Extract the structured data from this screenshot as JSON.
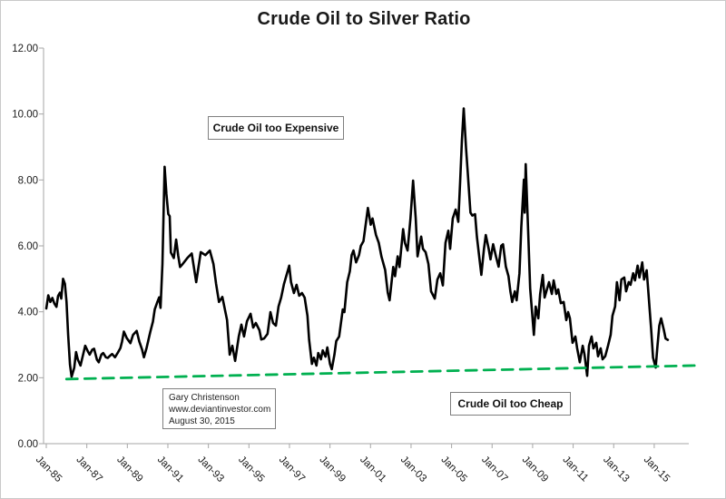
{
  "chart": {
    "title": "Crude Oil to Silver Ratio"
  },
  "annotations": {
    "expensive": "Crude Oil too Expensive",
    "cheap": "Crude Oil too Cheap",
    "credit_line1": "Gary Christenson",
    "credit_line2": "www.deviantinvestor.com",
    "credit_line3": "August 30, 2015"
  },
  "colors": {
    "series": "#000000",
    "trendline": "#00B050",
    "axis": "#a6a6a6",
    "tick_text": "#1a1a1a",
    "box_border": "#7f7f7f"
  },
  "chart_data": {
    "type": "line",
    "title": "Crude Oil to Silver Ratio",
    "xlabel": "",
    "ylabel": "",
    "grid": false,
    "legend": null,
    "ylim": [
      0,
      12
    ],
    "y_ticks": [
      0,
      2,
      4,
      6,
      8,
      10,
      12
    ],
    "y_tick_labels": [
      "0.00",
      "2.00",
      "4.00",
      "6.00",
      "8.00",
      "10.00",
      "12.00"
    ],
    "x_tick_years": [
      1985,
      1987,
      1989,
      1991,
      1993,
      1995,
      1997,
      1999,
      2001,
      2003,
      2005,
      2007,
      2009,
      2011,
      2013,
      2015
    ],
    "x_tick_labels": [
      "Jan-85",
      "Jan-87",
      "Jan-89",
      "Jan-91",
      "Jan-93",
      "Jan-95",
      "Jan-97",
      "Jan-99",
      "Jan-01",
      "Jan-03",
      "Jan-05",
      "Jan-07",
      "Jan-09",
      "Jan-11",
      "Jan-13",
      "Jan-15"
    ],
    "xlim_years": [
      1984.85,
      2016.7
    ],
    "series": [
      {
        "name": "Crude Oil to Silver Ratio",
        "color": "#000000",
        "style": "solid",
        "points": [
          [
            1985.0,
            4.1
          ],
          [
            1985.1,
            4.5
          ],
          [
            1985.2,
            4.3
          ],
          [
            1985.3,
            4.42
          ],
          [
            1985.4,
            4.25
          ],
          [
            1985.5,
            4.15
          ],
          [
            1985.58,
            4.48
          ],
          [
            1985.67,
            4.58
          ],
          [
            1985.74,
            4.4
          ],
          [
            1985.83,
            5.0
          ],
          [
            1985.92,
            4.85
          ],
          [
            1986.0,
            4.3
          ],
          [
            1986.08,
            3.3
          ],
          [
            1986.17,
            2.4
          ],
          [
            1986.25,
            2.03
          ],
          [
            1986.38,
            2.3
          ],
          [
            1986.47,
            2.78
          ],
          [
            1986.56,
            2.55
          ],
          [
            1986.69,
            2.37
          ],
          [
            1986.78,
            2.6
          ],
          [
            1986.92,
            2.97
          ],
          [
            1987.05,
            2.8
          ],
          [
            1987.14,
            2.7
          ],
          [
            1987.27,
            2.85
          ],
          [
            1987.36,
            2.88
          ],
          [
            1987.5,
            2.55
          ],
          [
            1987.59,
            2.47
          ],
          [
            1987.72,
            2.7
          ],
          [
            1987.81,
            2.75
          ],
          [
            1987.94,
            2.62
          ],
          [
            1988.03,
            2.6
          ],
          [
            1988.17,
            2.68
          ],
          [
            1988.25,
            2.72
          ],
          [
            1988.39,
            2.62
          ],
          [
            1988.52,
            2.75
          ],
          [
            1988.66,
            2.9
          ],
          [
            1988.74,
            3.1
          ],
          [
            1988.83,
            3.4
          ],
          [
            1988.97,
            3.2
          ],
          [
            1989.15,
            3.05
          ],
          [
            1989.28,
            3.3
          ],
          [
            1989.46,
            3.42
          ],
          [
            1989.59,
            3.1
          ],
          [
            1989.73,
            2.85
          ],
          [
            1989.82,
            2.62
          ],
          [
            1989.95,
            2.9
          ],
          [
            1990.13,
            3.39
          ],
          [
            1990.26,
            3.7
          ],
          [
            1990.35,
            4.07
          ],
          [
            1990.48,
            4.3
          ],
          [
            1990.57,
            4.44
          ],
          [
            1990.64,
            4.12
          ],
          [
            1990.73,
            5.45
          ],
          [
            1990.78,
            6.8
          ],
          [
            1990.84,
            8.4
          ],
          [
            1990.93,
            7.57
          ],
          [
            1991.02,
            6.97
          ],
          [
            1991.09,
            6.9
          ],
          [
            1991.15,
            5.8
          ],
          [
            1991.29,
            5.63
          ],
          [
            1991.41,
            6.19
          ],
          [
            1991.51,
            5.7
          ],
          [
            1991.6,
            5.36
          ],
          [
            1991.73,
            5.45
          ],
          [
            1991.96,
            5.63
          ],
          [
            1992.18,
            5.77
          ],
          [
            1992.4,
            4.9
          ],
          [
            1992.62,
            5.81
          ],
          [
            1992.85,
            5.72
          ],
          [
            1993.07,
            5.86
          ],
          [
            1993.25,
            5.45
          ],
          [
            1993.38,
            4.85
          ],
          [
            1993.52,
            4.3
          ],
          [
            1993.69,
            4.45
          ],
          [
            1993.92,
            3.75
          ],
          [
            1994.05,
            2.7
          ],
          [
            1994.18,
            2.97
          ],
          [
            1994.32,
            2.51
          ],
          [
            1994.5,
            3.25
          ],
          [
            1994.63,
            3.61
          ],
          [
            1994.76,
            3.25
          ],
          [
            1994.9,
            3.71
          ],
          [
            1995.08,
            3.94
          ],
          [
            1995.21,
            3.52
          ],
          [
            1995.34,
            3.66
          ],
          [
            1995.52,
            3.44
          ],
          [
            1995.61,
            3.16
          ],
          [
            1995.75,
            3.19
          ],
          [
            1995.92,
            3.33
          ],
          [
            1996.06,
            3.99
          ],
          [
            1996.19,
            3.66
          ],
          [
            1996.33,
            3.58
          ],
          [
            1996.46,
            4.16
          ],
          [
            1996.59,
            4.43
          ],
          [
            1996.73,
            4.84
          ],
          [
            1996.86,
            5.12
          ],
          [
            1996.99,
            5.4
          ],
          [
            1997.08,
            4.9
          ],
          [
            1997.22,
            4.57
          ],
          [
            1997.35,
            4.82
          ],
          [
            1997.48,
            4.49
          ],
          [
            1997.62,
            4.57
          ],
          [
            1997.75,
            4.43
          ],
          [
            1997.89,
            3.88
          ],
          [
            1997.97,
            3.16
          ],
          [
            1998.11,
            2.42
          ],
          [
            1998.2,
            2.61
          ],
          [
            1998.33,
            2.37
          ],
          [
            1998.42,
            2.75
          ],
          [
            1998.55,
            2.56
          ],
          [
            1998.64,
            2.83
          ],
          [
            1998.78,
            2.64
          ],
          [
            1998.87,
            2.92
          ],
          [
            1999.0,
            2.42
          ],
          [
            1999.09,
            2.26
          ],
          [
            1999.22,
            2.7
          ],
          [
            1999.31,
            3.11
          ],
          [
            1999.45,
            3.25
          ],
          [
            1999.54,
            3.66
          ],
          [
            1999.63,
            4.07
          ],
          [
            1999.71,
            3.99
          ],
          [
            1999.85,
            4.9
          ],
          [
            1999.98,
            5.23
          ],
          [
            2000.07,
            5.72
          ],
          [
            2000.16,
            5.86
          ],
          [
            2000.29,
            5.5
          ],
          [
            2000.43,
            5.72
          ],
          [
            2000.52,
            6.0
          ],
          [
            2000.65,
            6.14
          ],
          [
            2000.87,
            7.15
          ],
          [
            2001.01,
            6.64
          ],
          [
            2001.1,
            6.83
          ],
          [
            2001.27,
            6.33
          ],
          [
            2001.41,
            6.09
          ],
          [
            2001.54,
            5.68
          ],
          [
            2001.72,
            5.27
          ],
          [
            2001.85,
            4.58
          ],
          [
            2001.94,
            4.35
          ],
          [
            2002.12,
            5.36
          ],
          [
            2002.21,
            5.08
          ],
          [
            2002.34,
            5.68
          ],
          [
            2002.43,
            5.36
          ],
          [
            2002.61,
            6.51
          ],
          [
            2002.7,
            6.09
          ],
          [
            2002.83,
            5.86
          ],
          [
            2002.97,
            6.83
          ],
          [
            2003.1,
            7.98
          ],
          [
            2003.23,
            6.83
          ],
          [
            2003.32,
            5.68
          ],
          [
            2003.5,
            6.28
          ],
          [
            2003.59,
            5.91
          ],
          [
            2003.72,
            5.81
          ],
          [
            2003.86,
            5.45
          ],
          [
            2003.99,
            4.62
          ],
          [
            2004.17,
            4.4
          ],
          [
            2004.3,
            4.98
          ],
          [
            2004.44,
            5.17
          ],
          [
            2004.57,
            4.8
          ],
          [
            2004.7,
            6.09
          ],
          [
            2004.84,
            6.46
          ],
          [
            2004.93,
            5.91
          ],
          [
            2005.06,
            6.83
          ],
          [
            2005.2,
            7.1
          ],
          [
            2005.33,
            6.73
          ],
          [
            2005.42,
            7.92
          ],
          [
            2005.51,
            9.21
          ],
          [
            2005.6,
            10.17
          ],
          [
            2005.71,
            8.98
          ],
          [
            2005.8,
            8.2
          ],
          [
            2005.93,
            7.01
          ],
          [
            2006.02,
            6.92
          ],
          [
            2006.16,
            6.96
          ],
          [
            2006.25,
            6.28
          ],
          [
            2006.38,
            5.59
          ],
          [
            2006.47,
            5.12
          ],
          [
            2006.6,
            5.91
          ],
          [
            2006.69,
            6.33
          ],
          [
            2006.83,
            5.91
          ],
          [
            2006.92,
            5.59
          ],
          [
            2007.05,
            6.05
          ],
          [
            2007.19,
            5.68
          ],
          [
            2007.32,
            5.37
          ],
          [
            2007.45,
            6.0
          ],
          [
            2007.54,
            6.05
          ],
          [
            2007.68,
            5.37
          ],
          [
            2007.81,
            5.08
          ],
          [
            2007.9,
            4.62
          ],
          [
            2007.99,
            4.3
          ],
          [
            2008.12,
            4.62
          ],
          [
            2008.21,
            4.35
          ],
          [
            2008.35,
            5.17
          ],
          [
            2008.44,
            6.55
          ],
          [
            2008.57,
            8.01
          ],
          [
            2008.61,
            7.01
          ],
          [
            2008.66,
            8.48
          ],
          [
            2008.79,
            6.28
          ],
          [
            2008.88,
            4.71
          ],
          [
            2009.06,
            3.3
          ],
          [
            2009.15,
            4.16
          ],
          [
            2009.28,
            3.8
          ],
          [
            2009.37,
            4.54
          ],
          [
            2009.5,
            5.12
          ],
          [
            2009.59,
            4.43
          ],
          [
            2009.72,
            4.71
          ],
          [
            2009.81,
            4.9
          ],
          [
            2009.95,
            4.54
          ],
          [
            2010.04,
            4.95
          ],
          [
            2010.17,
            4.54
          ],
          [
            2010.26,
            4.68
          ],
          [
            2010.39,
            4.26
          ],
          [
            2010.53,
            4.3
          ],
          [
            2010.66,
            3.75
          ],
          [
            2010.75,
            3.99
          ],
          [
            2010.84,
            3.8
          ],
          [
            2010.97,
            3.06
          ],
          [
            2011.11,
            3.25
          ],
          [
            2011.2,
            2.89
          ],
          [
            2011.33,
            2.47
          ],
          [
            2011.47,
            2.97
          ],
          [
            2011.56,
            2.7
          ],
          [
            2011.69,
            2.06
          ],
          [
            2011.78,
            2.97
          ],
          [
            2011.91,
            3.25
          ],
          [
            2012.0,
            2.89
          ],
          [
            2012.14,
            3.06
          ],
          [
            2012.23,
            2.65
          ],
          [
            2012.36,
            2.89
          ],
          [
            2012.45,
            2.56
          ],
          [
            2012.58,
            2.65
          ],
          [
            2012.72,
            2.97
          ],
          [
            2012.85,
            3.3
          ],
          [
            2012.94,
            3.88
          ],
          [
            2013.07,
            4.16
          ],
          [
            2013.16,
            4.9
          ],
          [
            2013.29,
            4.35
          ],
          [
            2013.38,
            4.98
          ],
          [
            2013.52,
            5.04
          ],
          [
            2013.61,
            4.62
          ],
          [
            2013.74,
            4.9
          ],
          [
            2013.83,
            4.82
          ],
          [
            2013.96,
            5.17
          ],
          [
            2014.05,
            4.95
          ],
          [
            2014.18,
            5.4
          ],
          [
            2014.27,
            5.04
          ],
          [
            2014.41,
            5.5
          ],
          [
            2014.5,
            4.98
          ],
          [
            2014.63,
            5.26
          ],
          [
            2014.72,
            4.54
          ],
          [
            2014.85,
            3.44
          ],
          [
            2014.94,
            2.61
          ],
          [
            2015.07,
            2.31
          ],
          [
            2015.16,
            2.97
          ],
          [
            2015.25,
            3.58
          ],
          [
            2015.34,
            3.8
          ],
          [
            2015.48,
            3.44
          ],
          [
            2015.56,
            3.19
          ],
          [
            2015.67,
            3.15
          ]
        ]
      },
      {
        "name": "Rising support trendline",
        "color": "#00B050",
        "style": "dashed",
        "points": [
          [
            1986.0,
            1.96
          ],
          [
            2017.0,
            2.37
          ]
        ]
      }
    ]
  }
}
